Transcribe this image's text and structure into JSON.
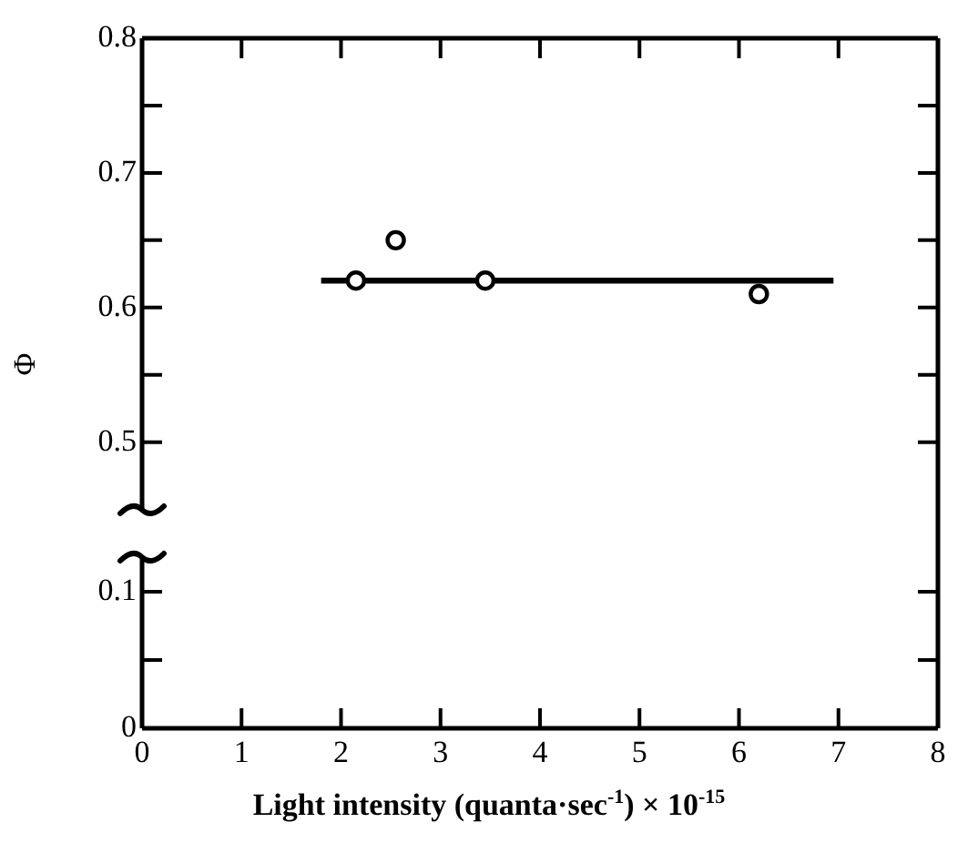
{
  "chart_data": [
    {
      "type": "scatter",
      "ylabel": "Φ",
      "xlim": [
        0,
        8
      ],
      "xticks": [
        0,
        1,
        2,
        3,
        4,
        5,
        6,
        7,
        8
      ],
      "ylim": [
        0.45,
        0.8
      ],
      "yticks": [
        0.5,
        {
          "value": 0.55,
          "label": null
        },
        0.6,
        {
          "value": 0.65,
          "label": null
        },
        0.7,
        {
          "value": 0.75,
          "label": null
        },
        0.8
      ],
      "tick_labels": "y",
      "grid": false,
      "legend": false,
      "series": [
        {
          "color": "#000000",
          "marker": "circle",
          "x": [
            2.15,
            2.55,
            3.45,
            6.2
          ],
          "values": [
            0.62,
            0.65,
            0.62,
            0.61
          ]
        },
        {
          "type": "line",
          "color": "#000000",
          "marker": "none",
          "x": [
            1.8,
            6.95
          ],
          "values": [
            0.62,
            0.62
          ]
        }
      ]
    },
    {
      "type": "scatter",
      "xlabel": "Light intensity (quanta·sec$^{-1}$) × 10$^{-15}$",
      "xlim": [
        0,
        8
      ],
      "xticks": [
        0,
        1,
        2,
        3,
        4,
        5,
        6,
        7,
        8
      ],
      "ylim": [
        0,
        0.125
      ],
      "yticks": [
        0,
        {
          "value": 0.05,
          "label": null
        },
        0.1
      ],
      "grid": false,
      "legend": false
    }
  ]
}
